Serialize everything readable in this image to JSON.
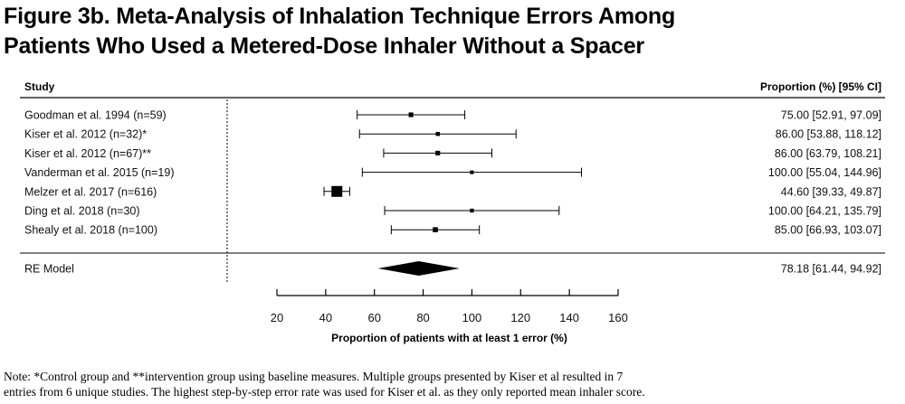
{
  "figure": {
    "title_line1": "Figure 3b. Meta-Analysis of Inhalation Technique Errors Among",
    "title_line2": "Patients Who Used a Metered-Dose Inhaler Without a Spacer",
    "note_line1": "Note: *Control group and **intervention group using baseline measures. Multiple groups presented by Kiser et al resulted in 7",
    "note_line2": "entries from 6 unique studies. The highest step-by-step error rate was used for Kiser et al. as they only reported mean inhaler score."
  },
  "chart_data": {
    "type": "forest",
    "header_left": "Study",
    "header_right": "Proportion (%) [95% CI]",
    "xlabel": "Proportion of patients with at least 1 error (%)",
    "xlim": [
      20,
      160
    ],
    "xticks": [
      20,
      40,
      60,
      80,
      100,
      120,
      140,
      160
    ],
    "reference_line": 0,
    "studies": [
      {
        "label": "Goodman et al. 1994 (n=59)",
        "estimate": 75.0,
        "lower": 52.91,
        "upper": 97.09,
        "ci_text": "75.00 [52.91, 97.09]",
        "n": 59
      },
      {
        "label": "Kiser et al. 2012 (n=32)*",
        "estimate": 86.0,
        "lower": 53.88,
        "upper": 118.12,
        "ci_text": "86.00 [53.88, 118.12]",
        "n": 32
      },
      {
        "label": "Kiser et al. 2012 (n=67)**",
        "estimate": 86.0,
        "lower": 63.79,
        "upper": 108.21,
        "ci_text": "86.00 [63.79, 108.21]",
        "n": 67
      },
      {
        "label": "Vanderman et al. 2015 (n=19)",
        "estimate": 100.0,
        "lower": 55.04,
        "upper": 144.96,
        "ci_text": "100.00 [55.04, 144.96]",
        "n": 19
      },
      {
        "label": "Melzer et al. 2017 (n=616)",
        "estimate": 44.6,
        "lower": 39.33,
        "upper": 49.87,
        "ci_text": "44.60 [39.33, 49.87]",
        "n": 616
      },
      {
        "label": "Ding et al. 2018 (n=30)",
        "estimate": 100.0,
        "lower": 64.21,
        "upper": 135.79,
        "ci_text": "100.00 [64.21, 135.79]",
        "n": 30
      },
      {
        "label": "Shealy et al. 2018 (n=100)",
        "estimate": 85.0,
        "lower": 66.93,
        "upper": 103.07,
        "ci_text": "85.00 [66.93, 103.07]",
        "n": 100
      }
    ],
    "summary": {
      "label": "RE Model",
      "estimate": 78.18,
      "lower": 61.44,
      "upper": 94.92,
      "ci_text": "78.18 [61.44, 94.92]"
    }
  }
}
